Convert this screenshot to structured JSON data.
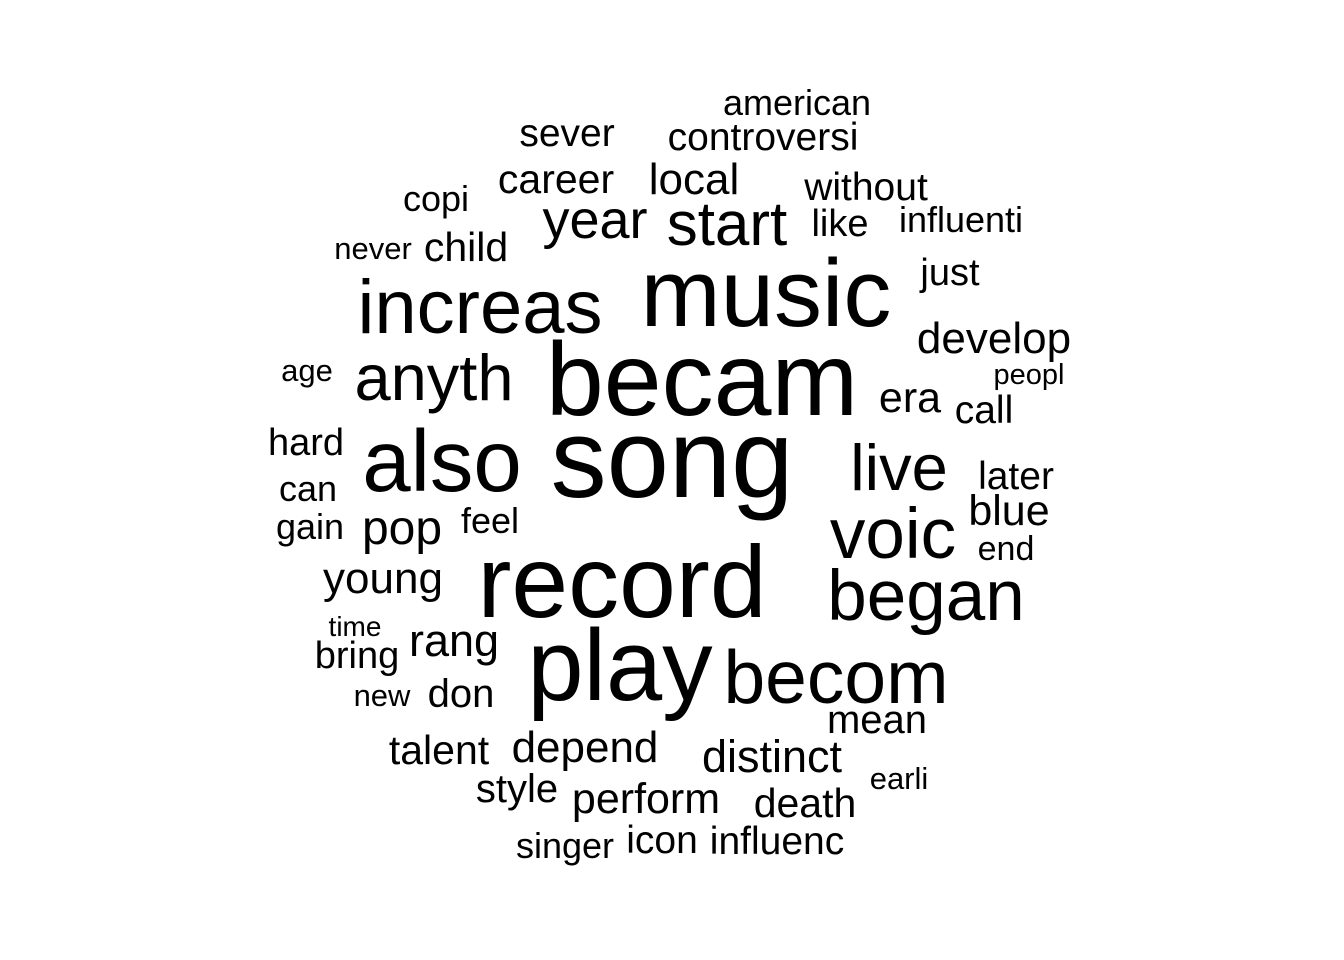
{
  "chart_data": {
    "type": "wordcloud",
    "color": "#000000",
    "background": "#ffffff",
    "words": [
      {
        "text": "song",
        "weight": 100
      },
      {
        "text": "becam",
        "weight": 93
      },
      {
        "text": "record",
        "weight": 91
      },
      {
        "text": "play",
        "weight": 90
      },
      {
        "text": "music",
        "weight": 86
      },
      {
        "text": "also",
        "weight": 78
      },
      {
        "text": "increas",
        "weight": 68
      },
      {
        "text": "becom",
        "weight": 67
      },
      {
        "text": "began",
        "weight": 63
      },
      {
        "text": "voic",
        "weight": 63
      },
      {
        "text": "live",
        "weight": 58
      },
      {
        "text": "anyth",
        "weight": 58
      },
      {
        "text": "start",
        "weight": 55
      },
      {
        "text": "year",
        "weight": 48
      },
      {
        "text": "pop",
        "weight": 43
      },
      {
        "text": "rang",
        "weight": 40
      },
      {
        "text": "distinct",
        "weight": 40
      },
      {
        "text": "develop",
        "weight": 39
      },
      {
        "text": "young",
        "weight": 39
      },
      {
        "text": "depend",
        "weight": 39
      },
      {
        "text": "local",
        "weight": 39
      },
      {
        "text": "blue",
        "weight": 38
      },
      {
        "text": "perform",
        "weight": 38
      },
      {
        "text": "era",
        "weight": 38
      },
      {
        "text": "talent",
        "weight": 37
      },
      {
        "text": "death",
        "weight": 37
      },
      {
        "text": "career",
        "weight": 37
      },
      {
        "text": "child",
        "weight": 37
      },
      {
        "text": "mean",
        "weight": 36
      },
      {
        "text": "don",
        "weight": 36
      },
      {
        "text": "style",
        "weight": 36
      },
      {
        "text": "controversi",
        "weight": 35
      },
      {
        "text": "sever",
        "weight": 35
      },
      {
        "text": "without",
        "weight": 35
      },
      {
        "text": "later",
        "weight": 35
      },
      {
        "text": "icon",
        "weight": 35
      },
      {
        "text": "influenc",
        "weight": 35
      },
      {
        "text": "call",
        "weight": 35
      },
      {
        "text": "like",
        "weight": 34
      },
      {
        "text": "just",
        "weight": 34
      },
      {
        "text": "hard",
        "weight": 34
      },
      {
        "text": "bring",
        "weight": 34
      },
      {
        "text": "singer",
        "weight": 32
      },
      {
        "text": "american",
        "weight": 32
      },
      {
        "text": "feel",
        "weight": 32
      },
      {
        "text": "can",
        "weight": 32
      },
      {
        "text": "influenti",
        "weight": 32
      },
      {
        "text": "gain",
        "weight": 32
      },
      {
        "text": "copi",
        "weight": 32
      },
      {
        "text": "end",
        "weight": 30
      },
      {
        "text": "earli",
        "weight": 28
      },
      {
        "text": "age",
        "weight": 28
      },
      {
        "text": "new",
        "weight": 28
      },
      {
        "text": "never",
        "weight": 28
      },
      {
        "text": "peopl",
        "weight": 26
      },
      {
        "text": "time",
        "weight": 25
      }
    ]
  }
}
